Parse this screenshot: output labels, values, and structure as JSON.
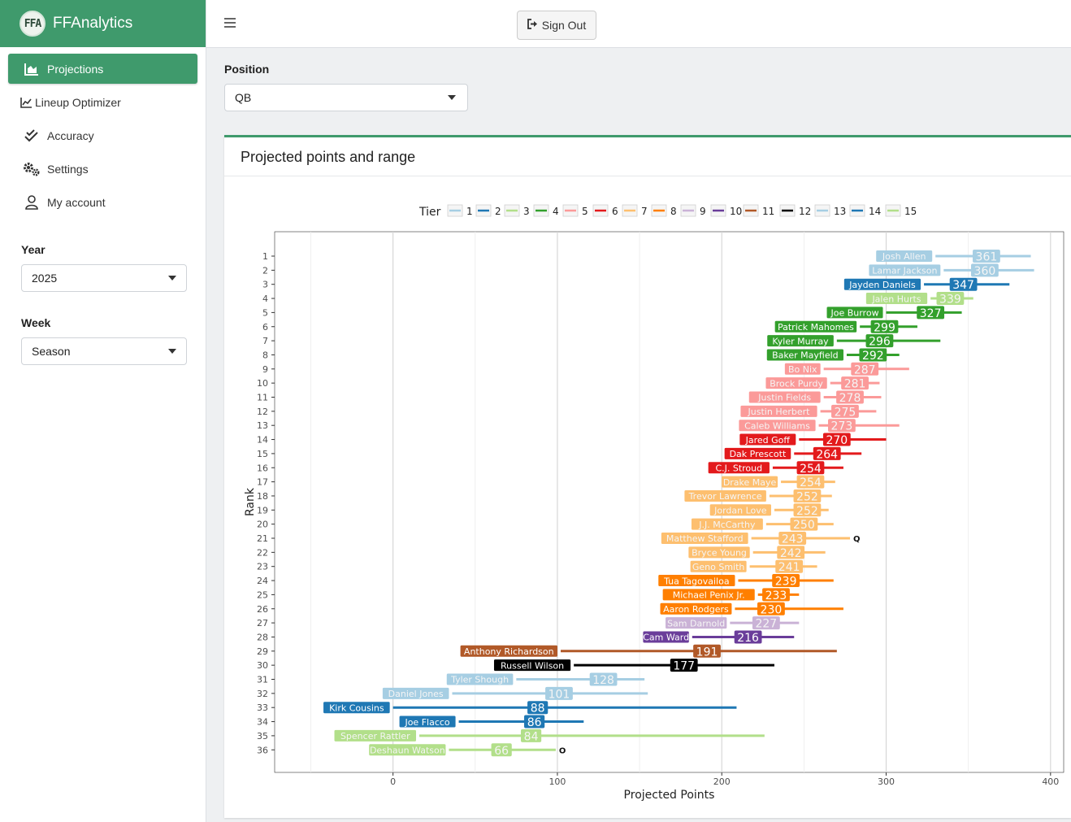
{
  "app": {
    "title": "FFAnalytics",
    "logo_text": "FFA"
  },
  "sidebar": {
    "items": [
      {
        "label": "Projections",
        "icon": "chart-area-icon",
        "active": true
      },
      {
        "label": "Lineup Optimizer",
        "icon": "line-chart-icon"
      },
      {
        "label": "Accuracy",
        "icon": "double-check-icon"
      },
      {
        "label": "Settings",
        "icon": "gears-icon"
      },
      {
        "label": "My account",
        "icon": "user-icon"
      }
    ],
    "year_label": "Year",
    "year_value": "2025",
    "week_label": "Week",
    "week_value": "Season"
  },
  "topbar": {
    "signout_label": "Sign Out"
  },
  "main": {
    "position_label": "Position",
    "position_value": "QB"
  },
  "card": {
    "title": "Projected points and range"
  },
  "chart_data": {
    "type": "range-dot",
    "xlabel": "Projected Points",
    "ylabel": "Rank",
    "xlim": [
      -72,
      408
    ],
    "xticks": [
      0,
      100,
      200,
      300,
      400
    ],
    "legend_title": "Tier",
    "legend_position": "top",
    "tier_colors": [
      "#a6cee3",
      "#1f78b4",
      "#b2df8a",
      "#33a02c",
      "#fb9a99",
      "#e31a1c",
      "#fdbf6f",
      "#ff7f00",
      "#cab2d6",
      "#6a3d9a",
      "#b15928",
      "#000000",
      "#a6cee3",
      "#1f78b4",
      "#b2df8a"
    ],
    "players": [
      {
        "rank": 1,
        "name": "Josh Allen",
        "points": 361,
        "low": 330,
        "high": 388,
        "tier": 1
      },
      {
        "rank": 2,
        "name": "Lamar Jackson",
        "points": 360,
        "low": 335,
        "high": 390,
        "tier": 1
      },
      {
        "rank": 3,
        "name": "Jayden Daniels",
        "points": 347,
        "low": 323,
        "high": 375,
        "tier": 2
      },
      {
        "rank": 4,
        "name": "Jalen Hurts",
        "points": 339,
        "low": 327,
        "high": 353,
        "tier": 3
      },
      {
        "rank": 5,
        "name": "Joe Burrow",
        "points": 327,
        "low": 300,
        "high": 346,
        "tier": 4
      },
      {
        "rank": 6,
        "name": "Patrick Mahomes",
        "points": 299,
        "low": 284,
        "high": 319,
        "tier": 4
      },
      {
        "rank": 7,
        "name": "Kyler Murray",
        "points": 296,
        "low": 270,
        "high": 333,
        "tier": 4
      },
      {
        "rank": 8,
        "name": "Baker Mayfield",
        "points": 292,
        "low": 276,
        "high": 308,
        "tier": 4
      },
      {
        "rank": 9,
        "name": "Bo Nix",
        "points": 287,
        "low": 262,
        "high": 314,
        "tier": 5
      },
      {
        "rank": 10,
        "name": "Brock Purdy",
        "points": 281,
        "low": 266,
        "high": 296,
        "tier": 5
      },
      {
        "rank": 11,
        "name": "Justin Fields",
        "points": 278,
        "low": 262,
        "high": 297,
        "tier": 5
      },
      {
        "rank": 12,
        "name": "Justin Herbert",
        "points": 275,
        "low": 260,
        "high": 294,
        "tier": 5
      },
      {
        "rank": 13,
        "name": "Caleb Williams",
        "points": 273,
        "low": 259,
        "high": 308,
        "tier": 5
      },
      {
        "rank": 14,
        "name": "Jared Goff",
        "points": 270,
        "low": 247,
        "high": 300,
        "tier": 6
      },
      {
        "rank": 15,
        "name": "Dak Prescott",
        "points": 264,
        "low": 244,
        "high": 285,
        "tier": 6
      },
      {
        "rank": 16,
        "name": "C.J. Stroud",
        "points": 254,
        "low": 231,
        "high": 274,
        "tier": 6
      },
      {
        "rank": 17,
        "name": "Drake Maye",
        "points": 254,
        "low": 236,
        "high": 269,
        "tier": 7
      },
      {
        "rank": 18,
        "name": "Trevor Lawrence",
        "points": 252,
        "low": 229,
        "high": 267,
        "tier": 7
      },
      {
        "rank": 19,
        "name": "Jordan Love",
        "points": 252,
        "low": 232,
        "high": 265,
        "tier": 7
      },
      {
        "rank": 20,
        "name": "J.J. McCarthy",
        "points": 250,
        "low": 227,
        "high": 268,
        "tier": 7
      },
      {
        "rank": 21,
        "name": "Matthew Stafford",
        "points": 243,
        "low": 218,
        "high": 278,
        "tier": 7,
        "status": "Q"
      },
      {
        "rank": 22,
        "name": "Bryce Young",
        "points": 242,
        "low": 219,
        "high": 263,
        "tier": 7
      },
      {
        "rank": 23,
        "name": "Geno Smith",
        "points": 241,
        "low": 217,
        "high": 258,
        "tier": 7
      },
      {
        "rank": 24,
        "name": "Tua Tagovailoa",
        "points": 239,
        "low": 210,
        "high": 268,
        "tier": 8
      },
      {
        "rank": 25,
        "name": "Michael Penix Jr.",
        "points": 233,
        "low": 222,
        "high": 247,
        "tier": 8
      },
      {
        "rank": 26,
        "name": "Aaron Rodgers",
        "points": 230,
        "low": 208,
        "high": 274,
        "tier": 8
      },
      {
        "rank": 27,
        "name": "Sam Darnold",
        "points": 227,
        "low": 205,
        "high": 247,
        "tier": 9
      },
      {
        "rank": 28,
        "name": "Cam Ward",
        "points": 216,
        "low": 182,
        "high": 244,
        "tier": 10
      },
      {
        "rank": 29,
        "name": "Anthony Richardson",
        "points": 191,
        "low": 102,
        "high": 270,
        "tier": 11
      },
      {
        "rank": 30,
        "name": "Russell Wilson",
        "points": 177,
        "low": 110,
        "high": 232,
        "tier": 12
      },
      {
        "rank": 31,
        "name": "Tyler Shough",
        "points": 128,
        "low": 75,
        "high": 153,
        "tier": 13
      },
      {
        "rank": 32,
        "name": "Daniel Jones",
        "points": 101,
        "low": 36,
        "high": 155,
        "tier": 13
      },
      {
        "rank": 33,
        "name": "Kirk Cousins",
        "points": 88,
        "low": 0,
        "high": 209,
        "tier": 14
      },
      {
        "rank": 34,
        "name": "Joe Flacco",
        "points": 86,
        "low": 40,
        "high": 116,
        "tier": 14
      },
      {
        "rank": 35,
        "name": "Spencer Rattler",
        "points": 84,
        "low": 16,
        "high": 226,
        "tier": 15
      },
      {
        "rank": 36,
        "name": "Deshaun Watson",
        "points": 66,
        "low": 34,
        "high": 99,
        "tier": 15,
        "status": "O"
      }
    ]
  }
}
